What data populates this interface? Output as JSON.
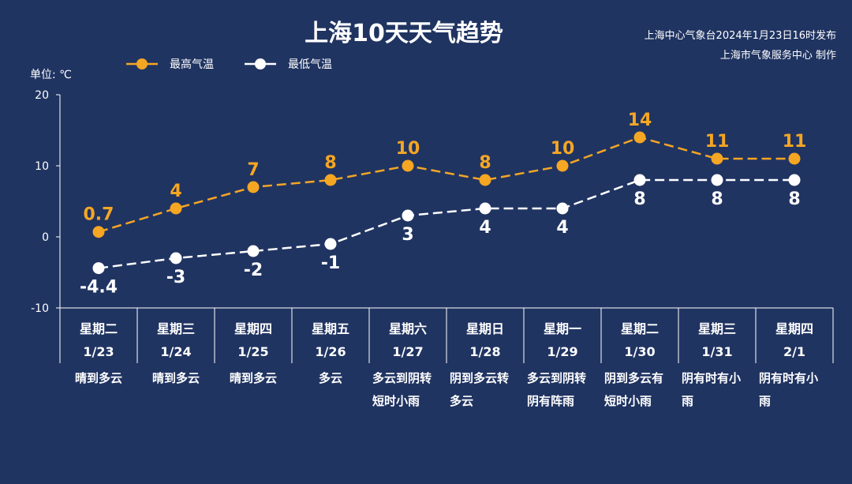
{
  "header": {
    "title": "上海10天天气趋势",
    "source_line1": "上海中心气象台2024年1月23日16时发布",
    "source_line2": "上海市气象服务中心 制作"
  },
  "colors": {
    "background": "#203462",
    "high": "#f5a623",
    "low": "#ffffff",
    "axis": "#ffffff"
  },
  "chart_data": {
    "type": "line",
    "ylabel": "单位: ℃",
    "ylim": [
      -10,
      20
    ],
    "yticks": [
      "20",
      "10",
      "0",
      "-10"
    ],
    "legend_position": "top-left",
    "categories": [
      {
        "day": "星期二",
        "date": "1/23",
        "weather": [
          "晴到多云"
        ]
      },
      {
        "day": "星期三",
        "date": "1/24",
        "weather": [
          "晴到多云"
        ]
      },
      {
        "day": "星期四",
        "date": "1/25",
        "weather": [
          "晴到多云"
        ]
      },
      {
        "day": "星期五",
        "date": "1/26",
        "weather": [
          "多云"
        ]
      },
      {
        "day": "星期六",
        "date": "1/27",
        "weather": [
          "多云到阴转",
          "短时小雨"
        ]
      },
      {
        "day": "星期日",
        "date": "1/28",
        "weather": [
          "阴到多云转",
          "多云"
        ]
      },
      {
        "day": "星期一",
        "date": "1/29",
        "weather": [
          "多云到阴转",
          "阴有阵雨"
        ]
      },
      {
        "day": "星期二",
        "date": "1/30",
        "weather": [
          "阴到多云有",
          "短时小雨"
        ]
      },
      {
        "day": "星期三",
        "date": "1/31",
        "weather": [
          "阴有时有小",
          "雨"
        ]
      },
      {
        "day": "星期四",
        "date": "2/1",
        "weather": [
          "阴有时有小",
          "雨"
        ]
      }
    ],
    "series": [
      {
        "name": "最高气温",
        "values": [
          0.7,
          4,
          7,
          8,
          10,
          8,
          10,
          14,
          11,
          11
        ],
        "labels": [
          "0.7",
          "4",
          "7",
          "8",
          "10",
          "8",
          "10",
          "14",
          "11",
          "11"
        ]
      },
      {
        "name": "最低气温",
        "values": [
          -4.4,
          -3,
          -2,
          -1,
          3,
          4,
          4,
          8,
          8,
          8
        ],
        "labels": [
          "-4.4",
          "-3",
          "-2",
          "-1",
          "3",
          "4",
          "4",
          "8",
          "8",
          "8"
        ]
      }
    ]
  }
}
